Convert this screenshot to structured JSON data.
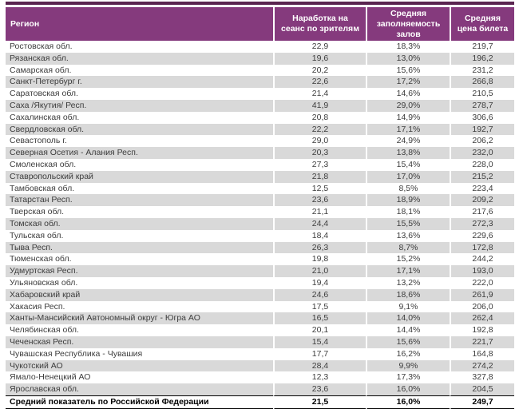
{
  "colors": {
    "top_bar": "#5a2450",
    "header_bg": "#853a7d",
    "header_text": "#ffffff",
    "alt_row": "#d9d9d9",
    "body_text": "#3d3d3d",
    "total_text": "#000000"
  },
  "table": {
    "columns": [
      {
        "label": "Регион"
      },
      {
        "label": "Наработка на сеанс по зрителям"
      },
      {
        "label": "Средняя заполняемость залов"
      },
      {
        "label": "Средняя цена билета"
      }
    ],
    "rows": [
      [
        "Ростовская обл.",
        "22,9",
        "18,3%",
        "219,7"
      ],
      [
        "Рязанская обл.",
        "19,6",
        "13,0%",
        "196,2"
      ],
      [
        "Самарская обл.",
        "20,2",
        "15,6%",
        "231,2"
      ],
      [
        "Санкт-Петербург г.",
        "22,6",
        "17,2%",
        "266,8"
      ],
      [
        "Саратовская обл.",
        "21,4",
        "14,6%",
        "210,5"
      ],
      [
        "Саха /Якутия/ Респ.",
        "41,9",
        "29,0%",
        "278,7"
      ],
      [
        "Сахалинская обл.",
        "20,8",
        "14,9%",
        "306,6"
      ],
      [
        "Свердловская обл.",
        "22,2",
        "17,1%",
        "192,7"
      ],
      [
        "Севастополь г.",
        "29,0",
        "24,9%",
        "206,2"
      ],
      [
        "Северная Осетия - Алания Респ.",
        "20,3",
        "13,8%",
        "232,0"
      ],
      [
        "Смоленская обл.",
        "27,3",
        "15,4%",
        "228,0"
      ],
      [
        "Ставропольский край",
        "21,8",
        "17,0%",
        "215,2"
      ],
      [
        "Тамбовская обл.",
        "12,5",
        "8,5%",
        "223,4"
      ],
      [
        "Татарстан Респ.",
        "23,6",
        "18,9%",
        "209,2"
      ],
      [
        "Тверская обл.",
        "21,1",
        "18,1%",
        "217,6"
      ],
      [
        "Томская обл.",
        "24,4",
        "15,5%",
        "272,3"
      ],
      [
        "Тульская обл.",
        "18,4",
        "13,6%",
        "229,6"
      ],
      [
        "Тыва Респ.",
        "26,3",
        "8,7%",
        "172,8"
      ],
      [
        "Тюменская обл.",
        "19,8",
        "15,2%",
        "244,2"
      ],
      [
        "Удмуртская Респ.",
        "21,0",
        "17,1%",
        "193,0"
      ],
      [
        "Ульяновская обл.",
        "19,4",
        "13,2%",
        "222,0"
      ],
      [
        "Хабаровский край",
        "24,6",
        "18,6%",
        "261,9"
      ],
      [
        "Хакасия Респ.",
        "17,5",
        "9,1%",
        "206,0"
      ],
      [
        "Ханты-Мансийский Автономный округ - Югра АО",
        "16,5",
        "14,0%",
        "262,4"
      ],
      [
        "Челябинская обл.",
        "20,1",
        "14,4%",
        "192,8"
      ],
      [
        "Чеченская Респ.",
        "15,4",
        "15,6%",
        "221,7"
      ],
      [
        "Чувашская Республика - Чувашия",
        "17,7",
        "16,2%",
        "164,8"
      ],
      [
        "Чукотский АО",
        "28,4",
        "9,9%",
        "274,2"
      ],
      [
        "Ямало-Ненецкий АО",
        "12,3",
        "17,3%",
        "327,8"
      ],
      [
        "Ярославская обл.",
        "23,6",
        "16,0%",
        "204,5"
      ]
    ],
    "total_row": [
      "Средний показатель по Российской Федерации",
      "21,5",
      "16,0%",
      "249,7"
    ]
  }
}
